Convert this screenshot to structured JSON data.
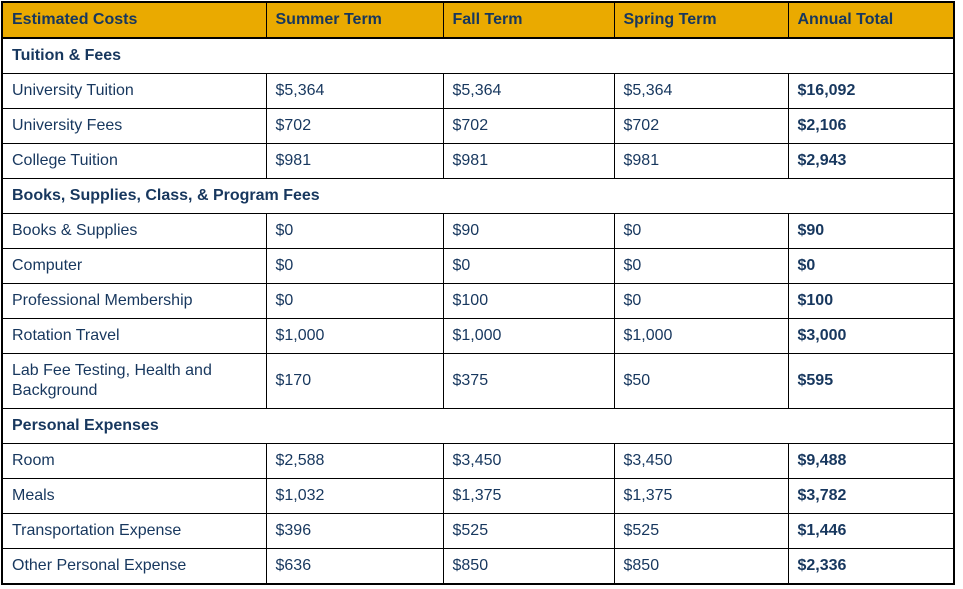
{
  "colors": {
    "header_background_gold": "#EAAA00",
    "text_navy": "#17375E",
    "border_black": "#000000",
    "body_background": "#FFFFFF"
  },
  "table": {
    "columns": [
      "Estimated Costs",
      "Summer Term",
      "Fall Term",
      "Spring Term",
      "Annual Total"
    ],
    "sections": [
      {
        "title": "Tuition & Fees",
        "rows": [
          {
            "cells": [
              "University Tuition",
              "$5,364",
              "$5,364",
              "$5,364",
              "$16,092"
            ]
          },
          {
            "cells": [
              "University Fees",
              "$702",
              "$702",
              "$702",
              "$2,106"
            ]
          },
          {
            "cells": [
              "College Tuition",
              "$981",
              "$981",
              "$981",
              "$2,943"
            ]
          }
        ]
      },
      {
        "title": "Books, Supplies, Class, & Program Fees",
        "rows": [
          {
            "cells": [
              "Books & Supplies",
              "$0",
              "$90",
              "$0",
              "$90"
            ]
          },
          {
            "cells": [
              "Computer",
              "$0",
              "$0",
              "$0",
              "$0"
            ]
          },
          {
            "cells": [
              "Professional Membership",
              "$0",
              "$100",
              "$0",
              "$100"
            ]
          },
          {
            "cells": [
              "Rotation Travel",
              "$1,000",
              "$1,000",
              "$1,000",
              "$3,000"
            ]
          },
          {
            "cells": [
              "Lab Fee Testing, Health and Background",
              "$170",
              "$375",
              "$50",
              "$595"
            ]
          }
        ]
      },
      {
        "title": "Personal Expenses",
        "rows": [
          {
            "cells": [
              "Room",
              "$2,588",
              "$3,450",
              "$3,450",
              "$9,488"
            ]
          },
          {
            "cells": [
              "Meals",
              "$1,032",
              "$1,375",
              "$1,375",
              "$3,782"
            ]
          },
          {
            "cells": [
              "Transportation Expense",
              "$396",
              "$525",
              "$525",
              "$1,446"
            ]
          },
          {
            "cells": [
              "Other Personal Expense",
              "$636",
              "$850",
              "$850",
              "$2,336"
            ]
          }
        ]
      }
    ]
  },
  "chart_data": {
    "type": "table",
    "title": "Estimated Costs",
    "columns": [
      "Estimated Costs",
      "Summer Term",
      "Fall Term",
      "Spring Term",
      "Annual Total"
    ],
    "rows": [
      [
        "Tuition & Fees",
        "",
        "",
        "",
        ""
      ],
      [
        "University Tuition",
        5364,
        5364,
        5364,
        16092
      ],
      [
        "University Fees",
        702,
        702,
        702,
        2106
      ],
      [
        "College Tuition",
        981,
        981,
        981,
        2943
      ],
      [
        "Books, Supplies, Class, & Program Fees",
        "",
        "",
        "",
        ""
      ],
      [
        "Books & Supplies",
        0,
        90,
        0,
        90
      ],
      [
        "Computer",
        0,
        0,
        0,
        0
      ],
      [
        "Professional Membership",
        0,
        100,
        0,
        100
      ],
      [
        "Rotation Travel",
        1000,
        1000,
        1000,
        3000
      ],
      [
        "Lab Fee Testing, Health and Background",
        170,
        375,
        50,
        595
      ],
      [
        "Personal Expenses",
        "",
        "",
        "",
        ""
      ],
      [
        "Room",
        2588,
        3450,
        3450,
        9488
      ],
      [
        "Meals",
        1032,
        1375,
        1375,
        3782
      ],
      [
        "Transportation Expense",
        396,
        525,
        525,
        1446
      ],
      [
        "Other Personal Expense",
        636,
        850,
        850,
        2336
      ]
    ]
  }
}
